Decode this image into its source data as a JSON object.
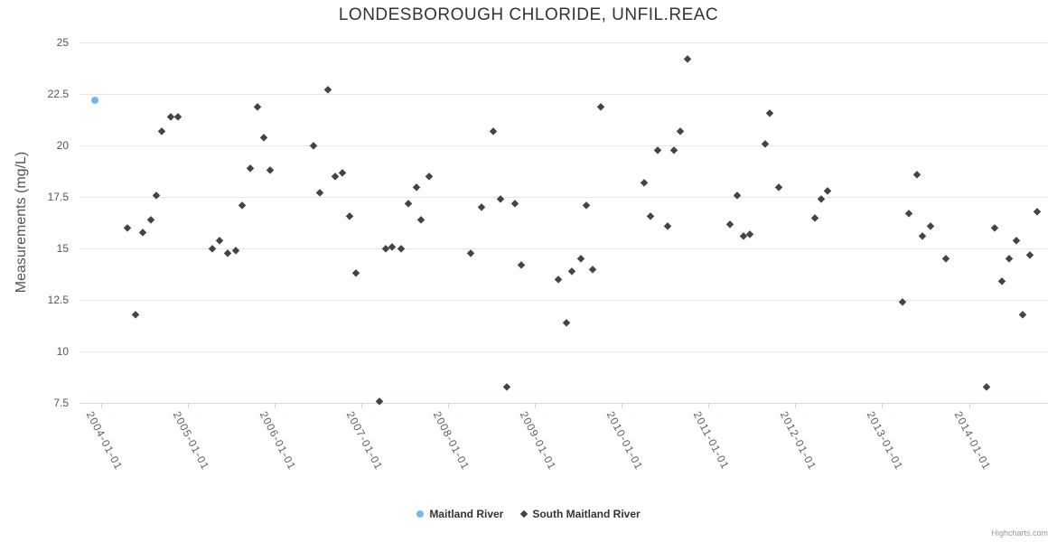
{
  "chart": {
    "title": "LONDESBOROUGH CHLORIDE, UNFIL.REAC",
    "y_axis_title": "Measurements (mg/L)",
    "credits": "Highcharts.com"
  },
  "legend": {
    "items": [
      {
        "label": "Maitland River",
        "marker": "circle",
        "color": "#7cb5ec"
      },
      {
        "label": "South Maitland River",
        "marker": "diamond",
        "color": "#434348"
      }
    ]
  },
  "colors": {
    "grid": "#e6e6e6",
    "axis_line": "#ccd6eb",
    "label_text": "#606060",
    "title_text": "#333333"
  },
  "chart_data": {
    "type": "scatter",
    "title": "LONDESBOROUGH CHLORIDE, UNFIL.REAC",
    "xlabel": "",
    "ylabel": "Measurements (mg/L)",
    "ylim": [
      7.5,
      25
    ],
    "y_ticks": [
      7.5,
      10,
      12.5,
      15,
      17.5,
      20,
      22.5,
      25
    ],
    "x_ticks": [
      "2004-01-01",
      "2005-01-01",
      "2006-01-01",
      "2007-01-01",
      "2008-01-01",
      "2009-01-01",
      "2010-01-01",
      "2011-01-01",
      "2012-01-01",
      "2013-01-01",
      "2014-01-01"
    ],
    "xlim_years": [
      2003.755,
      2014.91
    ],
    "grid": true,
    "legend_position": "bottom",
    "series": [
      {
        "name": "Maitland River",
        "color": "#7cb5ec",
        "marker": "circle",
        "points": [
          [
            "2003-12-07",
            22.2
          ]
        ]
      },
      {
        "name": "South Maitland River",
        "color": "#434348",
        "marker": "diamond",
        "points": [
          [
            "2004-04-21",
            16.0
          ],
          [
            "2004-05-28",
            11.8
          ],
          [
            "2004-06-27",
            15.8
          ],
          [
            "2004-07-31",
            16.4
          ],
          [
            "2004-08-21",
            17.6
          ],
          [
            "2004-09-16",
            20.7
          ],
          [
            "2004-10-22",
            21.4
          ],
          [
            "2004-11-22",
            21.4
          ],
          [
            "2005-04-15",
            15.0
          ],
          [
            "2005-05-15",
            15.4
          ],
          [
            "2005-06-17",
            14.8
          ],
          [
            "2005-07-21",
            14.9
          ],
          [
            "2005-08-18",
            17.1
          ],
          [
            "2005-09-20",
            18.9
          ],
          [
            "2005-10-22",
            21.9
          ],
          [
            "2005-11-18",
            20.4
          ],
          [
            "2005-12-15",
            18.8
          ],
          [
            "2006-06-15",
            20.0
          ],
          [
            "2006-07-11",
            17.7
          ],
          [
            "2006-08-13",
            22.7
          ],
          [
            "2006-09-12",
            18.5
          ],
          [
            "2006-10-15",
            18.7
          ],
          [
            "2006-11-12",
            16.6
          ],
          [
            "2006-12-10",
            13.8
          ],
          [
            "2007-03-18",
            7.6
          ],
          [
            "2007-04-14",
            15.0
          ],
          [
            "2007-05-12",
            15.1
          ],
          [
            "2007-06-18",
            15.0
          ],
          [
            "2007-07-18",
            17.2
          ],
          [
            "2007-08-20",
            18.0
          ],
          [
            "2007-09-10",
            16.4
          ],
          [
            "2007-10-15",
            18.5
          ],
          [
            "2008-04-07",
            14.8
          ],
          [
            "2008-05-20",
            17.0
          ],
          [
            "2008-07-10",
            20.7
          ],
          [
            "2008-08-09",
            17.4
          ],
          [
            "2008-09-05",
            8.3
          ],
          [
            "2008-10-09",
            17.2
          ],
          [
            "2008-11-06",
            14.2
          ],
          [
            "2009-04-08",
            13.5
          ],
          [
            "2009-05-13",
            11.4
          ],
          [
            "2009-06-07",
            13.9
          ],
          [
            "2009-07-12",
            14.5
          ],
          [
            "2009-08-05",
            17.1
          ],
          [
            "2009-09-02",
            14.0
          ],
          [
            "2009-10-05",
            21.9
          ],
          [
            "2010-04-05",
            18.2
          ],
          [
            "2010-05-03",
            16.6
          ],
          [
            "2010-06-01",
            19.8
          ],
          [
            "2010-07-13",
            16.1
          ],
          [
            "2010-08-09",
            19.8
          ],
          [
            "2010-09-05",
            20.7
          ],
          [
            "2010-10-03",
            24.2
          ],
          [
            "2011-04-01",
            16.2
          ],
          [
            "2011-05-02",
            17.6
          ],
          [
            "2011-05-28",
            15.6
          ],
          [
            "2011-06-24",
            15.7
          ],
          [
            "2011-08-27",
            20.1
          ],
          [
            "2011-09-15",
            21.6
          ],
          [
            "2011-10-23",
            18.0
          ],
          [
            "2012-03-25",
            16.5
          ],
          [
            "2012-04-20",
            17.4
          ],
          [
            "2012-05-17",
            17.8
          ],
          [
            "2013-03-28",
            12.4
          ],
          [
            "2013-04-22",
            16.7
          ],
          [
            "2013-05-26",
            18.6
          ],
          [
            "2013-06-20",
            15.6
          ],
          [
            "2013-07-22",
            16.1
          ],
          [
            "2013-09-27",
            14.5
          ],
          [
            "2014-03-14",
            8.3
          ],
          [
            "2014-04-19",
            16.0
          ],
          [
            "2014-05-21",
            13.4
          ],
          [
            "2014-06-20",
            14.5
          ],
          [
            "2014-07-19",
            15.4
          ],
          [
            "2014-08-15",
            11.8
          ],
          [
            "2014-09-15",
            14.7
          ],
          [
            "2014-10-15",
            16.8
          ]
        ]
      }
    ]
  }
}
